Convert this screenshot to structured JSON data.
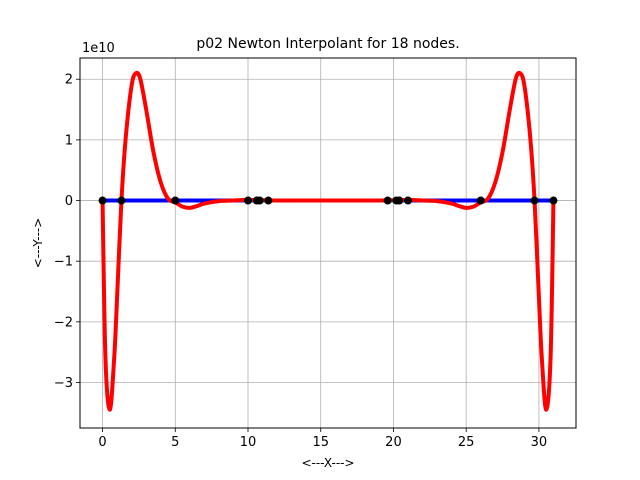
{
  "chart_data": {
    "type": "line",
    "title": "p02 Newton Interpolant for 18 nodes.",
    "xlabel": "<---X--->",
    "ylabel": "<---Y--->",
    "y_offset_label": "1e10",
    "xlim": [
      -1.55,
      32.55
    ],
    "ylim": [
      -3.75,
      2.35
    ],
    "y_units_multiplier": 10000000000.0,
    "grid": true,
    "x_ticks": [
      0,
      5,
      10,
      15,
      20,
      25,
      30
    ],
    "x_tick_labels": [
      "0",
      "5",
      "10",
      "15",
      "20",
      "25",
      "30"
    ],
    "y_ticks": [
      -3,
      -2,
      -1,
      0,
      1,
      2
    ],
    "y_tick_labels": [
      "−3",
      "−2",
      "−1",
      "0",
      "1",
      "2"
    ],
    "series": [
      {
        "color": "#0000ff",
        "style": "line",
        "x": [
          0,
          31
        ],
        "y": [
          0,
          0
        ]
      },
      {
        "color": "#ff0000",
        "style": "line",
        "x": [
          0.0,
          0.2,
          0.5,
          0.8,
          1.0,
          1.3,
          1.6,
          2.0,
          2.3,
          2.6,
          3.0,
          3.5,
          4.0,
          4.5,
          5.0,
          5.5,
          6.0,
          6.5,
          7.0,
          8.0,
          9.0,
          10.0,
          12.0,
          15.5,
          19.0,
          21.0,
          22.0,
          23.0,
          24.0,
          24.5,
          25.0,
          25.5,
          26.0,
          26.5,
          27.0,
          27.5,
          28.0,
          28.4,
          28.7,
          29.0,
          29.4,
          29.7,
          30.0,
          30.2,
          30.5,
          30.8,
          31.0
        ],
        "y": [
          0.0,
          -2.6,
          -3.45,
          -2.6,
          -1.6,
          0.0,
          1.05,
          1.9,
          2.1,
          2.0,
          1.5,
          0.8,
          0.3,
          0.03,
          -0.03,
          -0.1,
          -0.12,
          -0.09,
          -0.05,
          -0.01,
          0.0,
          0.01,
          0.0,
          0.0,
          0.0,
          0.01,
          0.0,
          -0.01,
          -0.05,
          -0.09,
          -0.12,
          -0.1,
          -0.03,
          0.03,
          0.3,
          0.8,
          1.5,
          2.0,
          2.1,
          1.9,
          1.05,
          0.0,
          -1.6,
          -2.6,
          -3.45,
          -2.6,
          0.0
        ]
      },
      {
        "color": "#000000",
        "style": "markers",
        "x": [
          0.0,
          1.3,
          5.0,
          10.0,
          10.6,
          10.8,
          11.4,
          19.6,
          20.2,
          20.4,
          21.0,
          26.0,
          29.7,
          31.0
        ],
        "y": [
          0,
          0,
          0,
          0,
          0,
          0,
          0,
          0,
          0,
          0,
          0,
          0,
          0,
          0
        ]
      }
    ]
  }
}
